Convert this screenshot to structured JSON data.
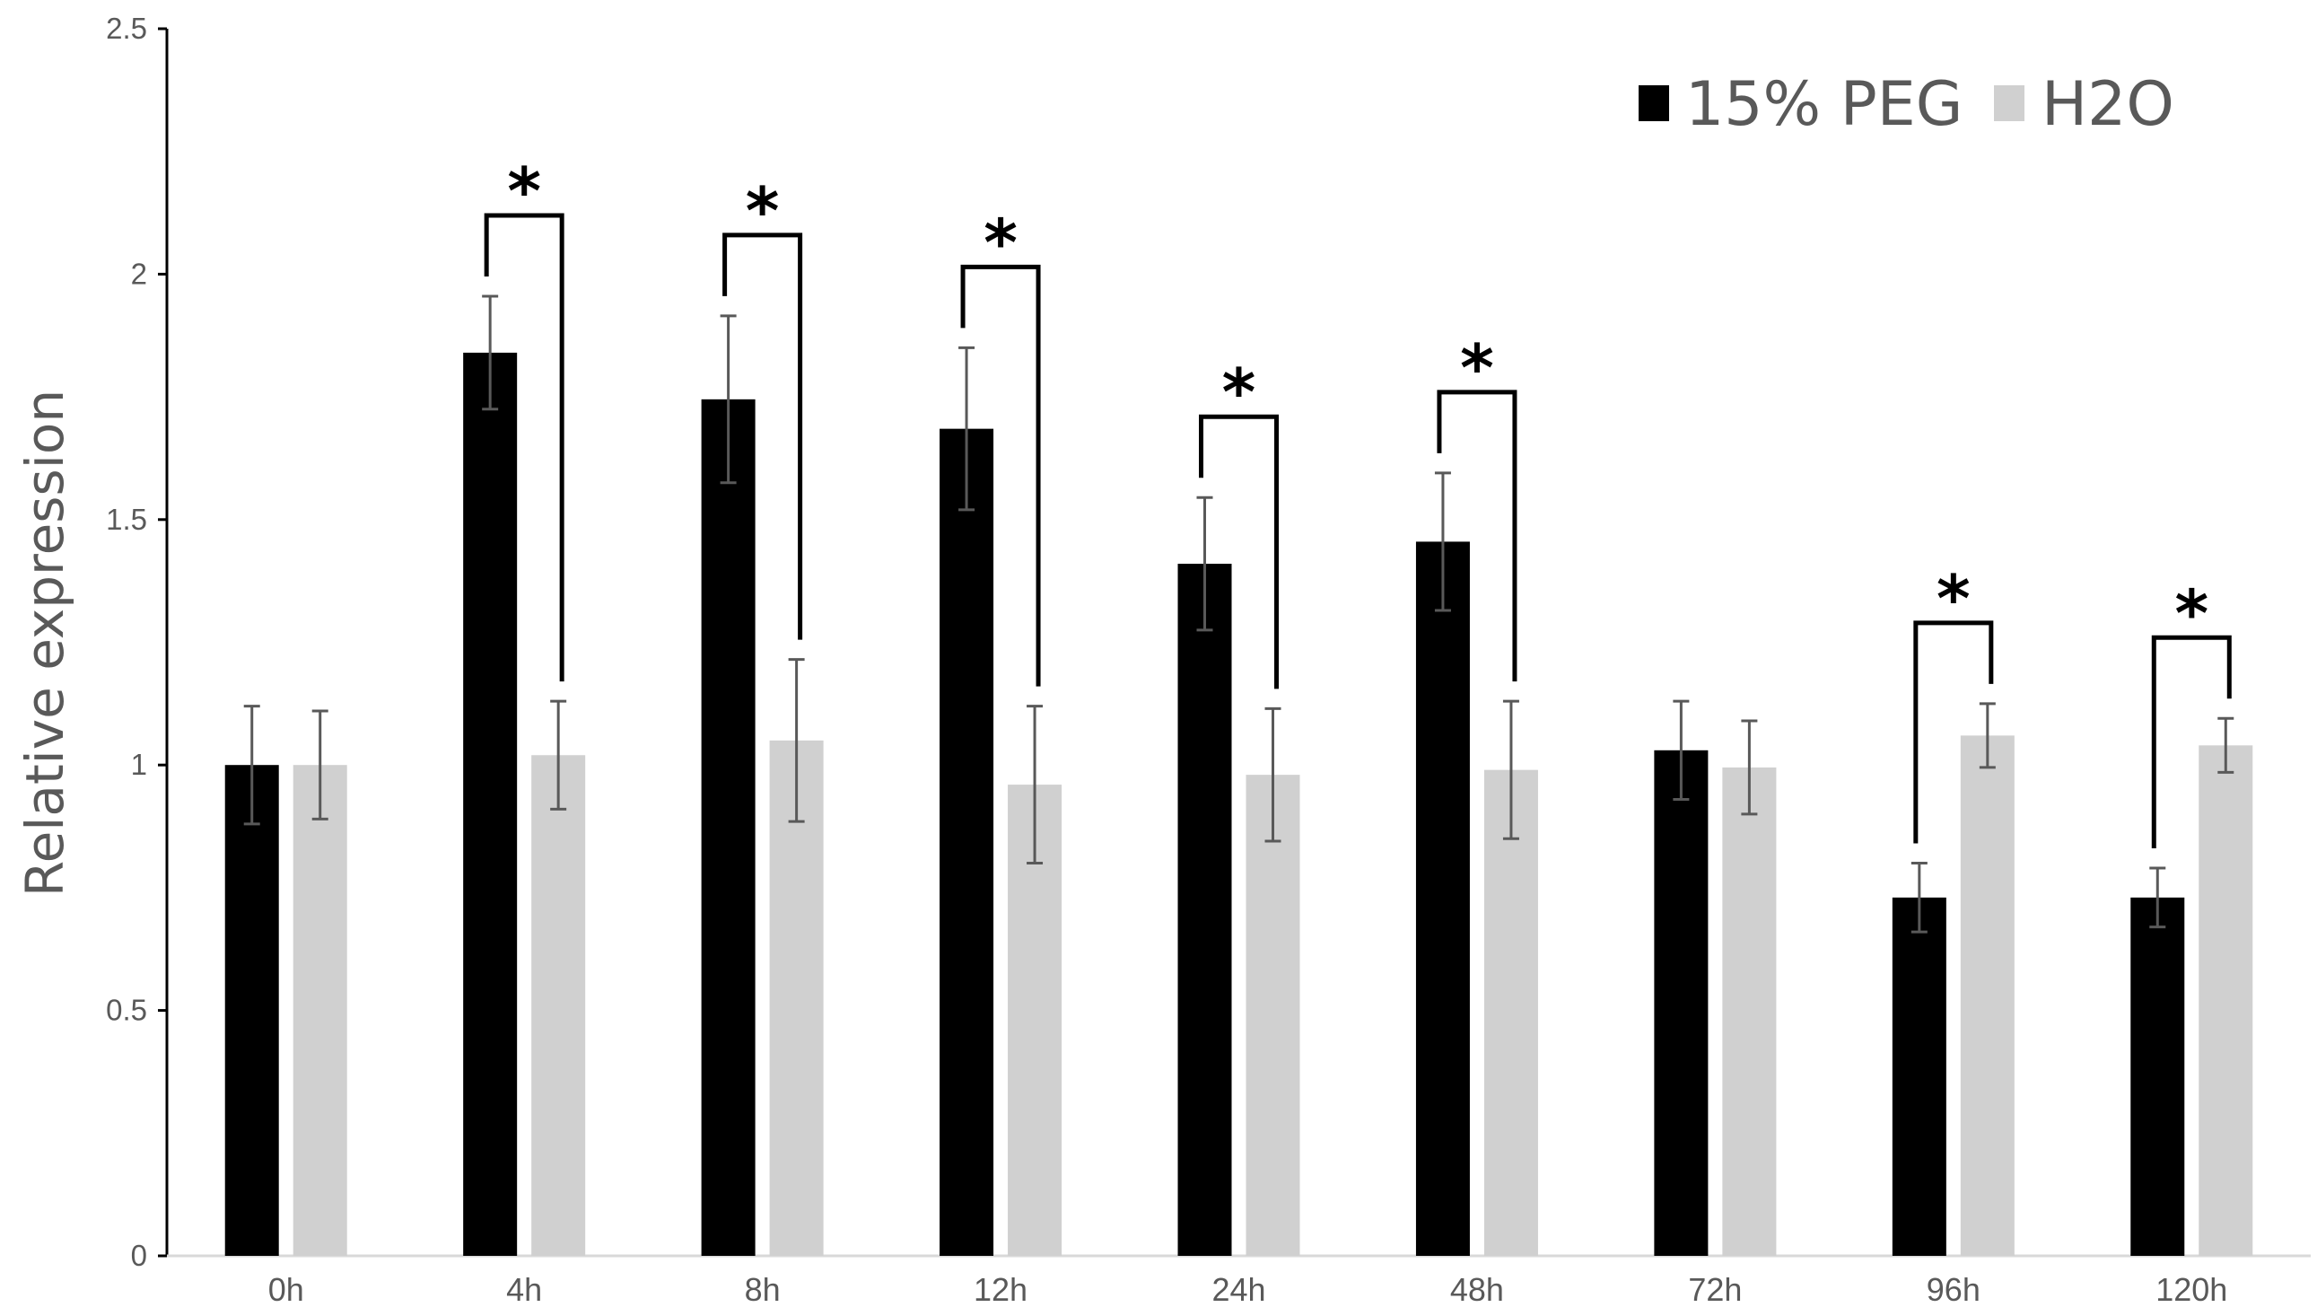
{
  "chart_data": {
    "type": "bar",
    "title": "",
    "xlabel": "",
    "ylabel": "Relative expression",
    "ylim": [
      0,
      2.5
    ],
    "yticks": [
      "0",
      "0.5",
      "1",
      "1.5",
      "2",
      "2.5"
    ],
    "categories": [
      "0h",
      "4h",
      "8h",
      "12h",
      "24h",
      "48h",
      "72h",
      "96h",
      "120h"
    ],
    "series": [
      {
        "name": "15% PEG",
        "color": "#000000",
        "values": [
          1.0,
          1.84,
          1.745,
          1.685,
          1.41,
          1.455,
          1.03,
          0.73,
          0.73
        ],
        "errors": [
          0.12,
          0.115,
          0.17,
          0.165,
          0.135,
          0.14,
          0.1,
          0.07,
          0.06
        ]
      },
      {
        "name": "H2O",
        "color": "#d0d0d0",
        "values": [
          1.0,
          1.02,
          1.05,
          0.96,
          0.98,
          0.99,
          0.995,
          1.06,
          1.04
        ],
        "errors": [
          0.11,
          0.11,
          0.165,
          0.16,
          0.135,
          0.14,
          0.095,
          0.065,
          0.055
        ]
      }
    ],
    "significance": {
      "symbol": "*",
      "categories": [
        "4h",
        "8h",
        "12h",
        "24h",
        "48h",
        "96h",
        "120h"
      ]
    },
    "legend_position": "top-right",
    "grid": false
  }
}
